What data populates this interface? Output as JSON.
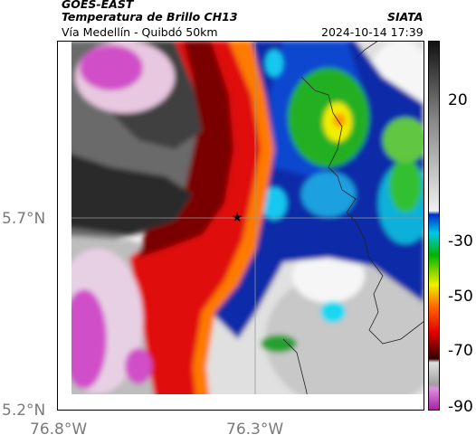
{
  "header": {
    "line1": "GOES-EAST",
    "line2": "Temperatura de Brillo CH13",
    "line3": "Vía Medellín - Quibdó 50km",
    "source": "SIATA",
    "datetime": "2024-10-14 17:39"
  },
  "axes": {
    "lat_ticks": [
      "5.7°N",
      "5.2°N"
    ],
    "lon_ticks": [
      "76.8°W",
      "76.3°W"
    ]
  },
  "colorbar": {
    "ticks": [
      "20",
      "-30",
      "-50",
      "-70",
      "-90"
    ],
    "colors": [
      "#1a1a1a",
      "#7a7a7a",
      "#e6e6e6",
      "#0033cc",
      "#00c8e6",
      "#00c800",
      "#f0f000",
      "#ff6600",
      "#e60000",
      "#5a0000",
      "#c040c0"
    ]
  },
  "map": {
    "marker": "star",
    "palette": {
      "cold_magenta": "#d050c8",
      "pale_pink": "#e8d0e4",
      "dark": "#1e1e1e",
      "red": "#e0100c",
      "orange": "#ff6a00",
      "yellow": "#f2ee00",
      "green": "#22c000",
      "cyan": "#18d8f0",
      "blue": "#0838c8",
      "navy": "#061890",
      "light_gray": "#d8d8d8",
      "white": "#f0f0f0"
    }
  }
}
